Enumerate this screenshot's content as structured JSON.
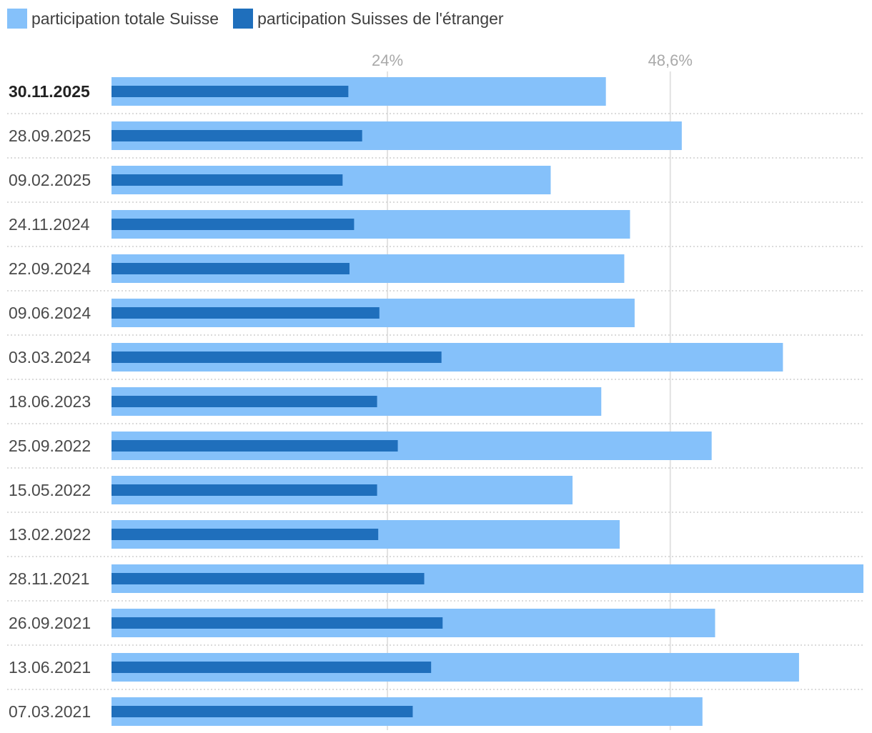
{
  "colors": {
    "total": "#85c1fa",
    "abroad": "#1f6fbc",
    "grid": "#e2e2e2",
    "row_separator": "#cfcfcf"
  },
  "legend": {
    "total_label": "participation totale Suisse",
    "abroad_label": "participation Suisses de l'étranger"
  },
  "chart_data": {
    "type": "bar",
    "orientation": "horizontal",
    "categories": [
      "30.11.2025",
      "28.09.2025",
      "09.02.2025",
      "24.11.2024",
      "22.09.2024",
      "09.06.2024",
      "03.03.2024",
      "18.06.2023",
      "25.09.2022",
      "15.05.2022",
      "13.02.2022",
      "28.11.2021",
      "26.09.2021",
      "13.06.2021",
      "07.03.2021"
    ],
    "series": [
      {
        "name": "participation totale Suisse",
        "values": [
          43.0,
          49.6,
          38.2,
          45.1,
          44.6,
          45.5,
          58.4,
          42.6,
          52.2,
          40.1,
          44.2,
          65.4,
          52.5,
          59.8,
          51.4
        ]
      },
      {
        "name": "participation Suisses de l'étranger",
        "values": [
          20.6,
          21.8,
          20.1,
          21.1,
          20.7,
          23.3,
          28.7,
          23.1,
          24.9,
          23.1,
          23.2,
          27.2,
          28.8,
          27.8,
          26.2
        ]
      }
    ],
    "x_ticks": [
      {
        "value": 24,
        "label": "24%"
      },
      {
        "value": 48.6,
        "label": "48,6%"
      }
    ],
    "xlim": [
      0,
      65.4
    ],
    "grid": true,
    "legend_position": "top-left"
  }
}
